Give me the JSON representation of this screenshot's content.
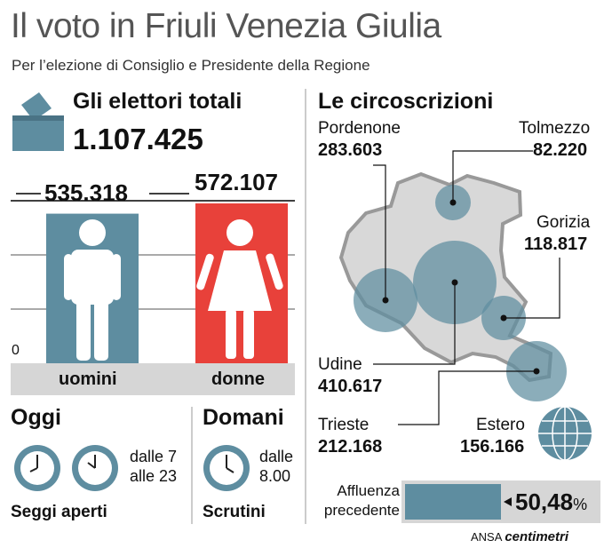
{
  "header": {
    "title": "Il voto in Friuli Venezia Giulia",
    "subtitle": "Per l’elezione di Consiglio e Presidente della Regione"
  },
  "voters": {
    "heading": "Gli elettori totali",
    "total": "1.107.425",
    "axis_zero": "0"
  },
  "chart_data": {
    "type": "bar",
    "categories": [
      "uomini",
      "donne"
    ],
    "values": [
      535318,
      572107
    ],
    "value_labels": [
      "535.318",
      "572.107"
    ],
    "colors": [
      "#5e8da0",
      "#e8413a"
    ]
  },
  "today": {
    "heading": "Oggi",
    "hours": "dalle 7\nalle 23",
    "caption": "Seggi aperti"
  },
  "tomorrow": {
    "heading": "Domani",
    "hours": "dalle\n8.00",
    "caption": "Scrutini"
  },
  "districts": {
    "heading": "Le circoscrizioni",
    "items": [
      {
        "name": "Pordenone",
        "value": "283.603"
      },
      {
        "name": "Tolmezzo",
        "value": "82.220"
      },
      {
        "name": "Gorizia",
        "value": "118.817"
      },
      {
        "name": "Udine",
        "value": "410.617"
      },
      {
        "name": "Trieste",
        "value": "212.168"
      },
      {
        "name": "Estero",
        "value": "156.166"
      }
    ]
  },
  "turnout": {
    "label": "Affluenza\nprecedente",
    "value": "50,48",
    "unit": "%"
  },
  "credits": {
    "agency": "ANSA",
    "brand": "centimetri"
  }
}
